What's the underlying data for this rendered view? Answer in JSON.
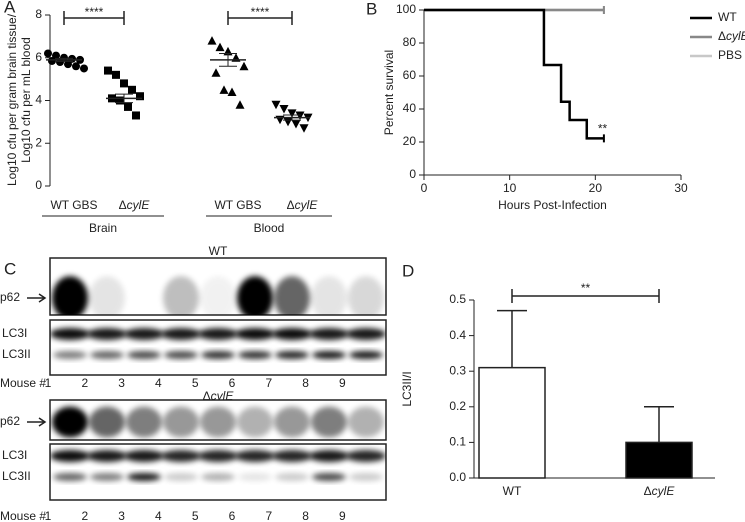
{
  "panel_labels": [
    "A",
    "B",
    "C",
    "D"
  ],
  "chart_data": [
    {
      "type": "scatter",
      "ylabel": [
        "Log10 cfu per gram brain tissue/",
        "Log10 cfu per mL blood"
      ],
      "categories": [
        "WT GBS",
        "ΔcylE",
        "WT GBS",
        "ΔcylE"
      ],
      "groups": [
        "Brain",
        "Blood"
      ],
      "ylim": [
        0,
        8
      ],
      "yticks": [
        0,
        2,
        4,
        6,
        8
      ],
      "series": [
        {
          "marker": "circle",
          "color": "#000",
          "values": [
            6.2,
            6.1,
            6.0,
            5.95,
            5.9,
            5.85,
            5.8,
            5.7,
            5.6,
            5.5
          ],
          "mean": 5.9,
          "sem": 0.07
        },
        {
          "marker": "square",
          "color": "#000",
          "values": [
            5.4,
            5.2,
            4.8,
            4.5,
            4.2,
            4.1,
            4.0,
            3.7,
            3.3
          ],
          "mean": 4.1,
          "sem": 0.2
        },
        {
          "marker": "triangle",
          "color": "#000",
          "values": [
            6.8,
            6.5,
            6.3,
            6.0,
            5.6,
            5.3,
            4.5,
            4.4,
            3.8
          ],
          "mean": 5.9,
          "sem": 0.3
        },
        {
          "marker": "triangle-down",
          "color": "#000",
          "values": [
            3.8,
            3.6,
            3.4,
            3.3,
            3.2,
            3.1,
            3.0,
            2.9,
            2.7
          ],
          "mean": 3.2,
          "sem": 0.12
        }
      ],
      "significance": [
        "****",
        "****"
      ]
    },
    {
      "type": "line",
      "step": true,
      "xlabel": "Hours Post-Infection",
      "ylabel": "Percent survival",
      "xlim": [
        0,
        30
      ],
      "xticks": [
        0,
        10,
        20,
        30
      ],
      "ylim": [
        0,
        100
      ],
      "yticks": [
        0,
        20,
        40,
        60,
        80,
        100
      ],
      "legend": "right",
      "series": [
        {
          "name": "WT",
          "color": "#000",
          "x": [
            0,
            14,
            16,
            17,
            19,
            21
          ],
          "values": [
            100,
            66.7,
            44.4,
            33.3,
            22.2,
            22.2
          ]
        },
        {
          "name": "ΔcylE",
          "color": "#888",
          "x": [
            0,
            21
          ],
          "values": [
            100,
            100
          ]
        },
        {
          "name": "PBS",
          "color": "#c8c8c8",
          "x": [
            0,
            21
          ],
          "values": [
            100,
            100
          ]
        }
      ],
      "annotation": "**"
    },
    {
      "type": "bar",
      "ylabel": "LC3II/I",
      "categories": [
        "WT",
        "ΔcylE"
      ],
      "values": [
        0.31,
        0.1
      ],
      "errors": [
        0.16,
        0.1
      ],
      "colors": [
        "#fff",
        "#000"
      ],
      "ylim": [
        0,
        0.5
      ],
      "yticks": [
        {
          "value": 0,
          "label": "0.0"
        },
        0.1,
        0.2,
        0.3,
        0.4,
        0.5
      ],
      "significance": "**"
    }
  ],
  "blots": [
    {
      "title": "WT",
      "rows": [
        "p62",
        "LC3I",
        "LC3II"
      ],
      "lane_label": "Mouse #",
      "lanes": [
        "1",
        "2",
        "3",
        "4",
        "5",
        "6",
        "7",
        "8",
        "9"
      ]
    },
    {
      "title": "ΔcylE",
      "rows": [
        "p62",
        "LC3I",
        "LC3II"
      ],
      "lane_label": "Mouse #",
      "lanes": [
        "1",
        "2",
        "3",
        "4",
        "5",
        "6",
        "7",
        "8",
        "9"
      ]
    }
  ]
}
